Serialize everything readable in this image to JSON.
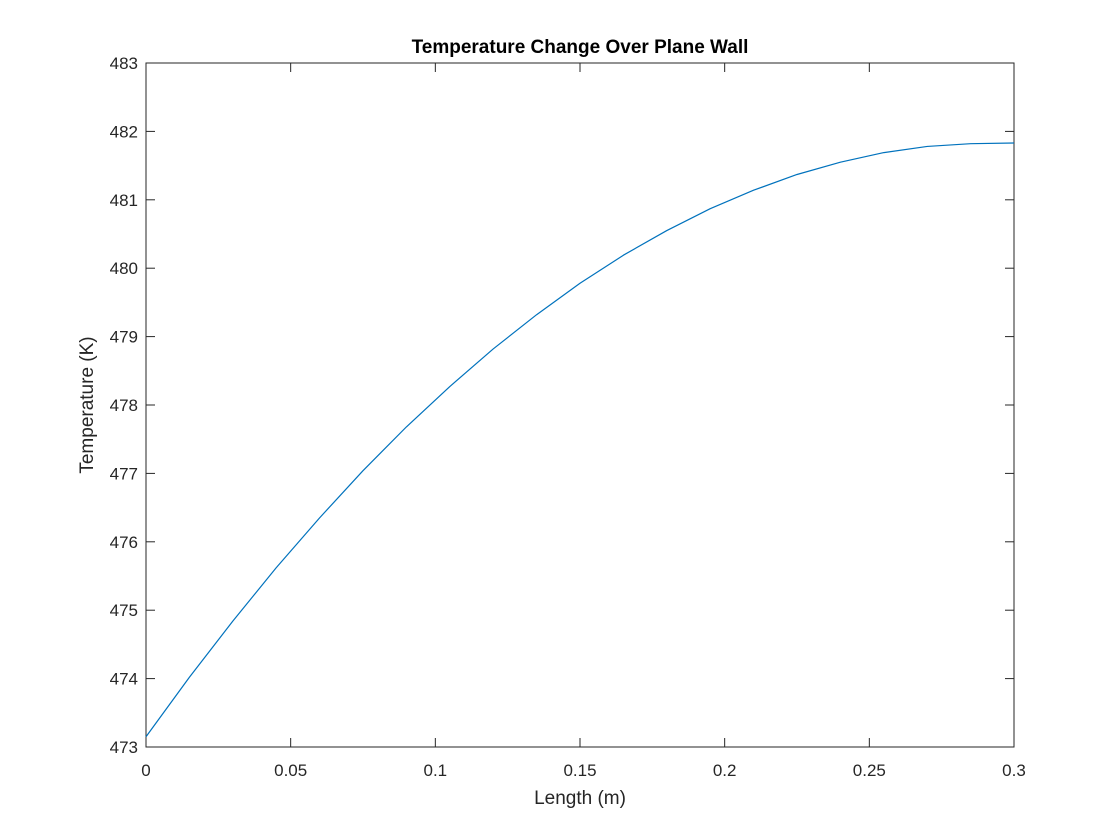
{
  "chart_data": {
    "type": "line",
    "title": "Temperature Change Over Plane Wall",
    "xlabel": "Length (m)",
    "ylabel": "Temperature (K)",
    "xlim": [
      0,
      0.3
    ],
    "ylim": [
      473,
      483
    ],
    "xticks": [
      0,
      0.05,
      0.1,
      0.15,
      0.2,
      0.25,
      0.3
    ],
    "xtick_labels": [
      "0",
      "0.05",
      "0.1",
      "0.15",
      "0.2",
      "0.25",
      "0.3"
    ],
    "yticks": [
      473,
      474,
      475,
      476,
      477,
      478,
      479,
      480,
      481,
      482,
      483
    ],
    "ytick_labels": [
      "473",
      "474",
      "475",
      "476",
      "477",
      "478",
      "479",
      "480",
      "481",
      "482",
      "483"
    ],
    "grid": false,
    "legend": "none",
    "box": true,
    "colors": {
      "line": "#0072BD",
      "axes": "#262626",
      "background": "#ffffff"
    },
    "series": [
      {
        "x": [
          0,
          0.015,
          0.03,
          0.045,
          0.06,
          0.075,
          0.09,
          0.105,
          0.12,
          0.135,
          0.15,
          0.165,
          0.18,
          0.195,
          0.21,
          0.225,
          0.24,
          0.255,
          0.27,
          0.285,
          0.3
        ],
        "values": [
          473.15,
          474.02,
          474.84,
          475.62,
          476.35,
          477.04,
          477.68,
          478.27,
          478.82,
          479.32,
          479.78,
          480.19,
          480.55,
          480.87,
          481.14,
          481.37,
          481.55,
          481.69,
          481.78,
          481.82,
          481.83
        ]
      }
    ]
  }
}
